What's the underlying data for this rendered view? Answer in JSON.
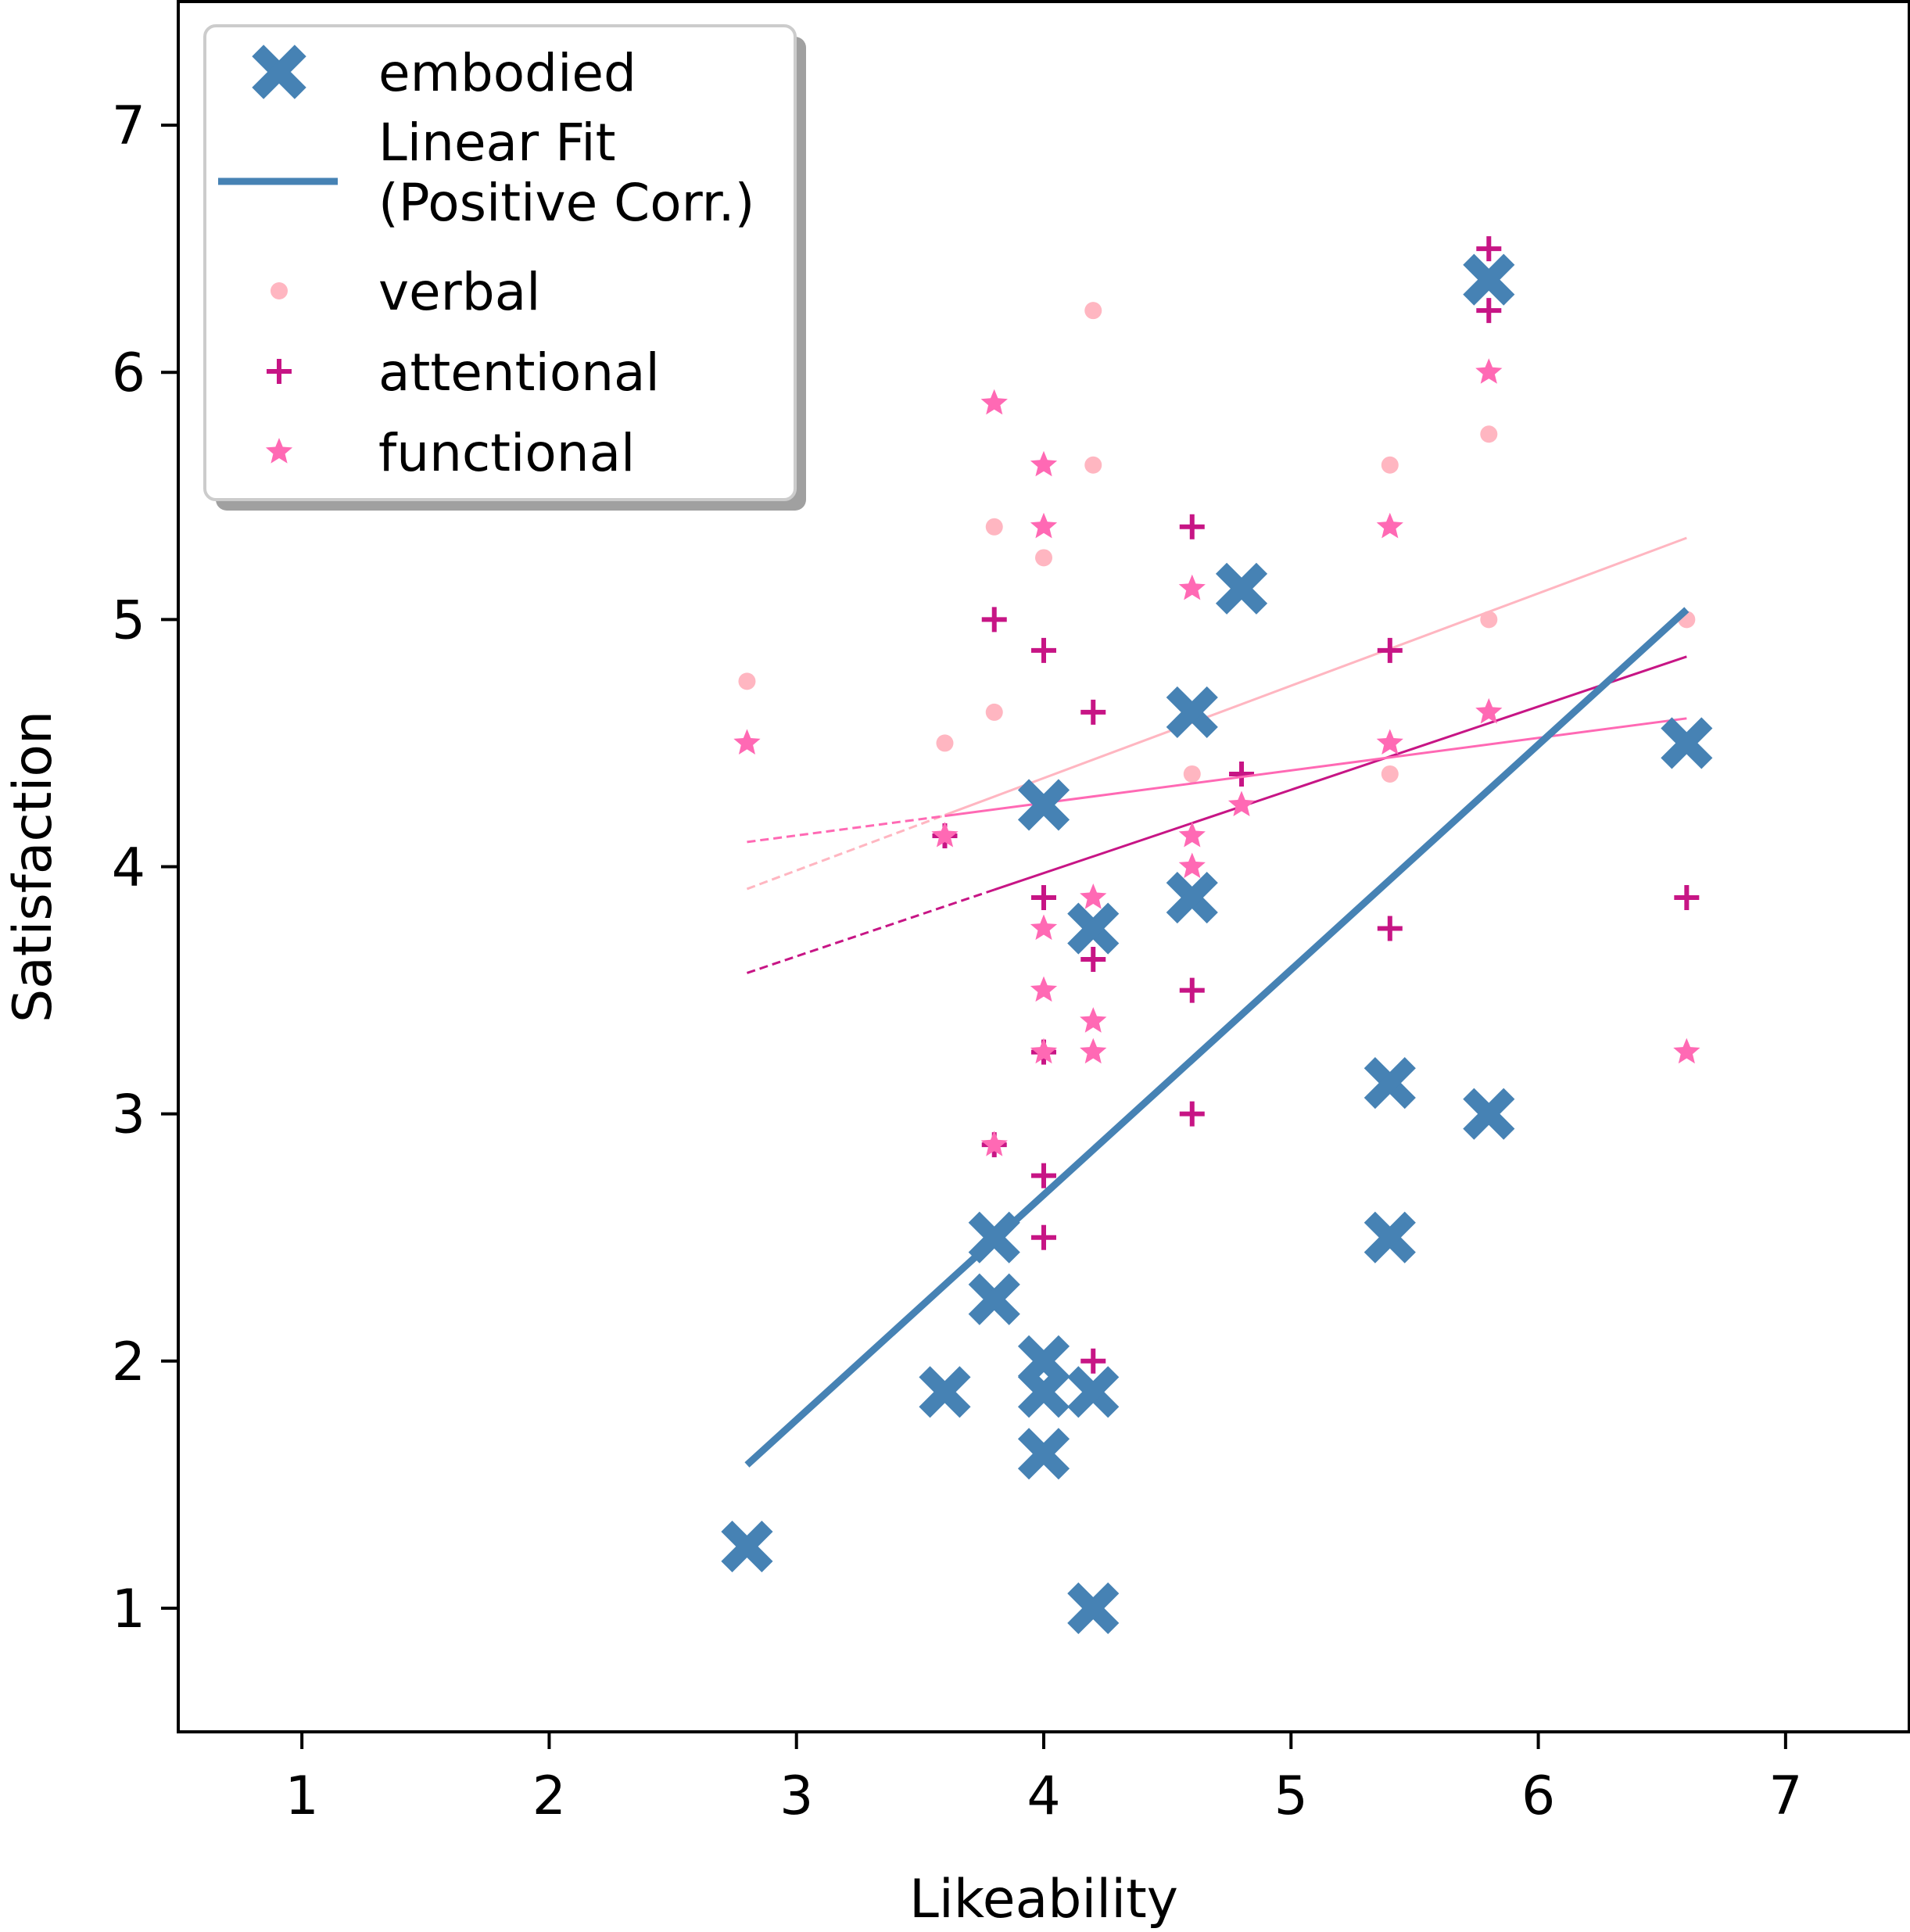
{
  "chart_data": {
    "type": "scatter",
    "xlabel": "Likeability",
    "ylabel": "Satisfaction",
    "xlim": [
      0.5,
      7.5
    ],
    "ylim": [
      0.5,
      7.5
    ],
    "xticks": [
      1,
      2,
      3,
      4,
      5,
      6,
      7
    ],
    "yticks": [
      1,
      2,
      3,
      4,
      5,
      6,
      7
    ],
    "legend": {
      "placement": "upper-left",
      "entries": [
        {
          "key": "embodied",
          "label": "embodied",
          "marker": "x-thick"
        },
        {
          "key": "fit",
          "label_lines": [
            "Linear Fit",
            "(Positive Corr.)"
          ],
          "marker": "line"
        },
        {
          "key": "verbal",
          "label": "verbal",
          "marker": "dot"
        },
        {
          "key": "attentional",
          "label": "attentional",
          "marker": "plus"
        },
        {
          "key": "functional",
          "label": "functional",
          "marker": "star"
        }
      ]
    },
    "colors": {
      "embodied": "#4682b4",
      "verbal": "#ffb6c1",
      "attentional": "#c71585",
      "functional": "#ff69b4"
    },
    "series": [
      {
        "name": "embodied",
        "marker": "x-thick",
        "points": [
          [
            2.8,
            1.25
          ],
          [
            3.6,
            1.875
          ],
          [
            3.8,
            2.5
          ],
          [
            3.8,
            2.25
          ],
          [
            4.0,
            4.25
          ],
          [
            4.0,
            2.0
          ],
          [
            4.0,
            1.875
          ],
          [
            4.0,
            1.625
          ],
          [
            4.2,
            3.75
          ],
          [
            4.2,
            1.875
          ],
          [
            4.2,
            1.0
          ],
          [
            4.6,
            4.625
          ],
          [
            4.6,
            3.875
          ],
          [
            4.8,
            5.125
          ],
          [
            5.4,
            3.125
          ],
          [
            5.4,
            2.5
          ],
          [
            5.8,
            6.375
          ],
          [
            5.8,
            3.0
          ],
          [
            6.6,
            4.5
          ]
        ],
        "fit": {
          "x": [
            2.8,
            6.6
          ],
          "y": [
            1.58,
            5.04
          ],
          "style": "solid-thick"
        }
      },
      {
        "name": "verbal",
        "marker": "dot",
        "points": [
          [
            2.8,
            4.75
          ],
          [
            3.6,
            4.5
          ],
          [
            3.8,
            5.375
          ],
          [
            3.8,
            4.625
          ],
          [
            4.0,
            5.25
          ],
          [
            4.0,
            2.0
          ],
          [
            4.2,
            6.25
          ],
          [
            4.2,
            5.625
          ],
          [
            4.6,
            4.625
          ],
          [
            4.6,
            4.375
          ],
          [
            4.8,
            5.125
          ],
          [
            5.4,
            5.625
          ],
          [
            5.4,
            4.375
          ],
          [
            5.8,
            5.75
          ],
          [
            5.8,
            5.0
          ],
          [
            6.6,
            5.0
          ]
        ],
        "fit": {
          "x": [
            2.8,
            6.6
          ],
          "y": [
            3.91,
            5.33
          ],
          "dashed_until": 3.6
        }
      },
      {
        "name": "attentional",
        "marker": "plus",
        "points": [
          [
            3.6,
            4.125
          ],
          [
            3.8,
            5.0
          ],
          [
            3.8,
            2.875
          ],
          [
            4.0,
            4.875
          ],
          [
            4.0,
            3.875
          ],
          [
            4.0,
            3.25
          ],
          [
            4.0,
            2.75
          ],
          [
            4.0,
            2.5
          ],
          [
            4.2,
            4.625
          ],
          [
            4.2,
            3.625
          ],
          [
            4.2,
            2.0
          ],
          [
            4.6,
            5.375
          ],
          [
            4.6,
            3.5
          ],
          [
            4.6,
            3.0
          ],
          [
            4.8,
            4.375
          ],
          [
            5.4,
            4.875
          ],
          [
            5.4,
            3.75
          ],
          [
            5.8,
            6.5
          ],
          [
            5.8,
            6.25
          ],
          [
            6.6,
            3.875
          ]
        ],
        "fit": {
          "x": [
            2.8,
            6.6
          ],
          "y": [
            3.57,
            4.85
          ],
          "dashed_until": 3.8
        }
      },
      {
        "name": "functional",
        "marker": "star",
        "points": [
          [
            2.8,
            4.5
          ],
          [
            3.6,
            4.125
          ],
          [
            3.8,
            5.875
          ],
          [
            3.8,
            2.875
          ],
          [
            4.0,
            5.625
          ],
          [
            4.0,
            5.375
          ],
          [
            4.0,
            3.75
          ],
          [
            4.0,
            3.5
          ],
          [
            4.0,
            3.25
          ],
          [
            4.2,
            3.875
          ],
          [
            4.2,
            3.375
          ],
          [
            4.2,
            3.25
          ],
          [
            4.6,
            5.125
          ],
          [
            4.6,
            4.125
          ],
          [
            4.6,
            4.0
          ],
          [
            4.8,
            4.25
          ],
          [
            5.4,
            5.375
          ],
          [
            5.4,
            4.5
          ],
          [
            5.8,
            6.0
          ],
          [
            5.8,
            4.625
          ],
          [
            6.6,
            3.25
          ]
        ],
        "fit": {
          "x": [
            2.8,
            6.6
          ],
          "y": [
            4.1,
            4.6
          ],
          "dashed_until": 3.6
        }
      }
    ]
  }
}
